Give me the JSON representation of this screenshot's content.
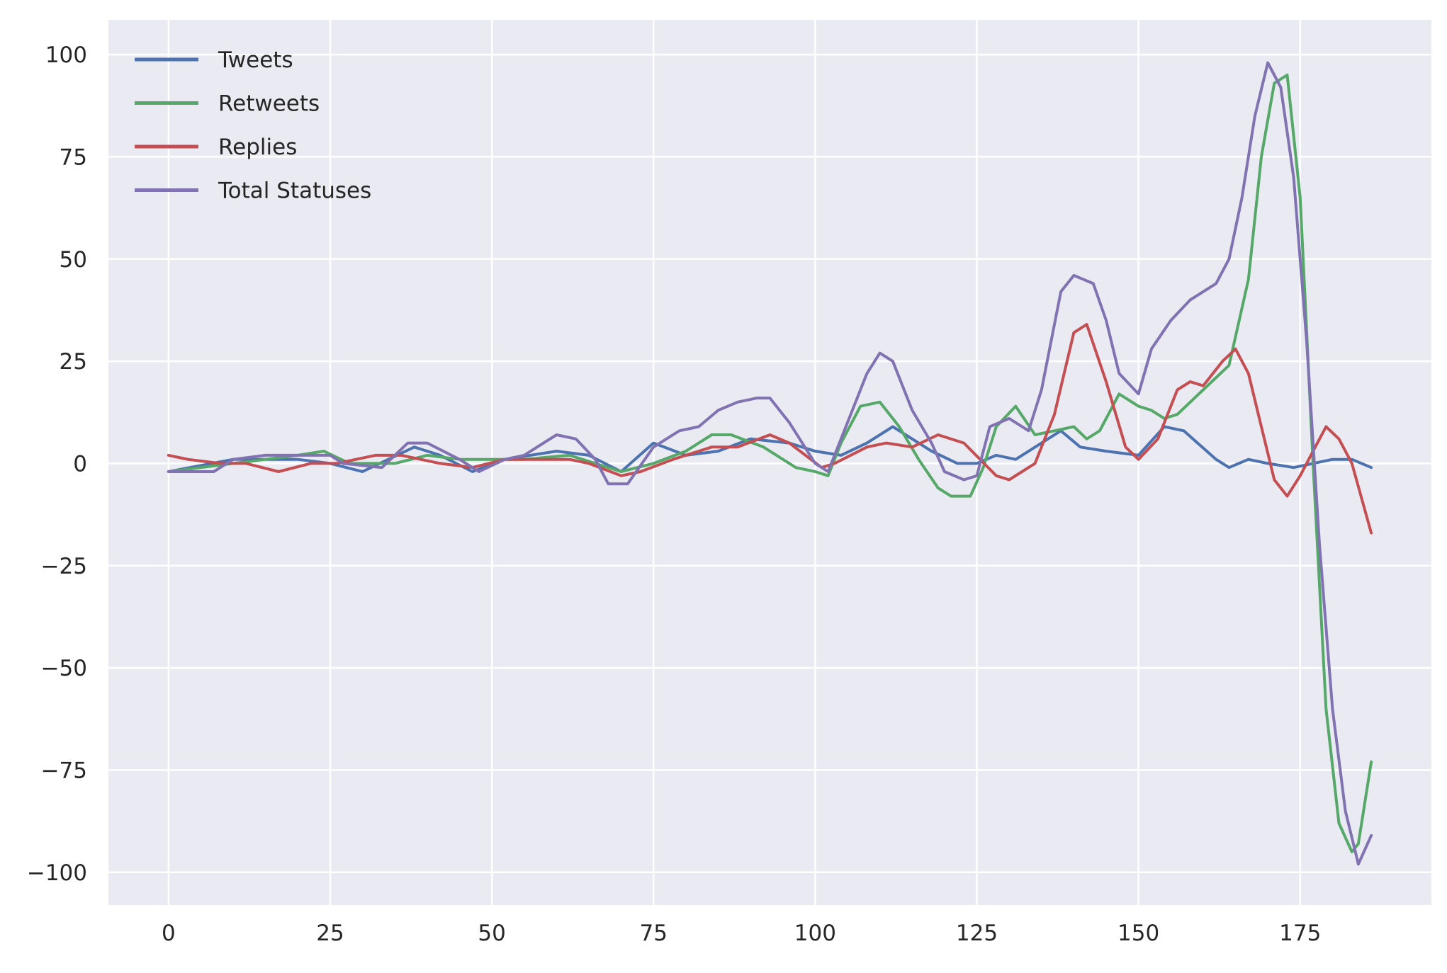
{
  "chart_data": {
    "type": "line",
    "title": "",
    "xlabel": "",
    "ylabel": "",
    "xlim": [
      -9.3,
      195.3
    ],
    "ylim": [
      -108,
      108.5
    ],
    "xticks": [
      0,
      25,
      50,
      75,
      100,
      125,
      150,
      175
    ],
    "yticks": [
      100,
      75,
      50,
      25,
      0,
      -25,
      -50,
      -75,
      -100
    ],
    "ytick_labels": [
      "100",
      "75",
      "50",
      "25",
      "0",
      "−25",
      "−50",
      "−75",
      "−100"
    ],
    "grid": true,
    "legend": {
      "position": "top-left"
    },
    "series": [
      {
        "name": "Tweets",
        "color": "#4C72B0",
        "points": [
          [
            0,
            -2
          ],
          [
            10,
            1
          ],
          [
            20,
            1
          ],
          [
            25,
            0
          ],
          [
            30,
            -2
          ],
          [
            38,
            4
          ],
          [
            42,
            2
          ],
          [
            47,
            -2
          ],
          [
            52,
            1
          ],
          [
            60,
            3
          ],
          [
            65,
            2
          ],
          [
            70,
            -2
          ],
          [
            75,
            5
          ],
          [
            80,
            2
          ],
          [
            85,
            3
          ],
          [
            90,
            6
          ],
          [
            96,
            5
          ],
          [
            100,
            3
          ],
          [
            104,
            2
          ],
          [
            108,
            5
          ],
          [
            112,
            9
          ],
          [
            118,
            3
          ],
          [
            122,
            0
          ],
          [
            125,
            0
          ],
          [
            128,
            2
          ],
          [
            131,
            1
          ],
          [
            135,
            5
          ],
          [
            138,
            8
          ],
          [
            141,
            4
          ],
          [
            145,
            3
          ],
          [
            150,
            2
          ],
          [
            154,
            9
          ],
          [
            157,
            8
          ],
          [
            162,
            1
          ],
          [
            164,
            -1
          ],
          [
            167,
            1
          ],
          [
            170,
            0
          ],
          [
            174,
            -1
          ],
          [
            180,
            1
          ],
          [
            183,
            1
          ],
          [
            186,
            -1
          ]
        ]
      },
      {
        "name": "Retweets",
        "color": "#55A868",
        "points": [
          [
            0,
            -2
          ],
          [
            10,
            0
          ],
          [
            20,
            2
          ],
          [
            24,
            3
          ],
          [
            28,
            0
          ],
          [
            35,
            0
          ],
          [
            40,
            2
          ],
          [
            45,
            1
          ],
          [
            50,
            1
          ],
          [
            55,
            1
          ],
          [
            62,
            2
          ],
          [
            66,
            0
          ],
          [
            70,
            -2
          ],
          [
            75,
            0
          ],
          [
            80,
            3
          ],
          [
            84,
            7
          ],
          [
            87,
            7
          ],
          [
            92,
            4
          ],
          [
            97,
            -1
          ],
          [
            100,
            -2
          ],
          [
            102,
            -3
          ],
          [
            104,
            5
          ],
          [
            107,
            14
          ],
          [
            110,
            15
          ],
          [
            113,
            9
          ],
          [
            116,
            1
          ],
          [
            119,
            -6
          ],
          [
            121,
            -8
          ],
          [
            124,
            -8
          ],
          [
            126,
            -1
          ],
          [
            128,
            9
          ],
          [
            131,
            14
          ],
          [
            134,
            7
          ],
          [
            137,
            8
          ],
          [
            140,
            9
          ],
          [
            142,
            6
          ],
          [
            144,
            8
          ],
          [
            147,
            17
          ],
          [
            150,
            14
          ],
          [
            152,
            13
          ],
          [
            154,
            11
          ],
          [
            156,
            12
          ],
          [
            160,
            18
          ],
          [
            164,
            24
          ],
          [
            167,
            45
          ],
          [
            169,
            75
          ],
          [
            171,
            93
          ],
          [
            173,
            95
          ],
          [
            175,
            65
          ],
          [
            177,
            0
          ],
          [
            179,
            -60
          ],
          [
            181,
            -88
          ],
          [
            183,
            -95
          ],
          [
            184,
            -93
          ],
          [
            186,
            -73
          ]
        ]
      },
      {
        "name": "Replies",
        "color": "#C44E52",
        "points": [
          [
            0,
            2
          ],
          [
            3,
            1
          ],
          [
            8,
            0
          ],
          [
            12,
            0
          ],
          [
            17,
            -2
          ],
          [
            22,
            0
          ],
          [
            26,
            0
          ],
          [
            32,
            2
          ],
          [
            36,
            2
          ],
          [
            42,
            0
          ],
          [
            47,
            -1
          ],
          [
            52,
            1
          ],
          [
            57,
            1
          ],
          [
            62,
            1
          ],
          [
            65,
            0
          ],
          [
            70,
            -3
          ],
          [
            73,
            -2
          ],
          [
            78,
            1
          ],
          [
            84,
            4
          ],
          [
            88,
            4
          ],
          [
            93,
            7
          ],
          [
            96,
            5
          ],
          [
            101,
            -1
          ],
          [
            103,
            0
          ],
          [
            108,
            4
          ],
          [
            111,
            5
          ],
          [
            115,
            4
          ],
          [
            119,
            7
          ],
          [
            123,
            5
          ],
          [
            128,
            -3
          ],
          [
            130,
            -4
          ],
          [
            134,
            0
          ],
          [
            137,
            12
          ],
          [
            140,
            32
          ],
          [
            142,
            34
          ],
          [
            145,
            20
          ],
          [
            148,
            4
          ],
          [
            150,
            1
          ],
          [
            153,
            6
          ],
          [
            156,
            18
          ],
          [
            158,
            20
          ],
          [
            160,
            19
          ],
          [
            163,
            25
          ],
          [
            165,
            28
          ],
          [
            167,
            22
          ],
          [
            169,
            9
          ],
          [
            171,
            -4
          ],
          [
            173,
            -8
          ],
          [
            175,
            -3
          ],
          [
            177,
            3
          ],
          [
            179,
            9
          ],
          [
            181,
            6
          ],
          [
            183,
            0
          ],
          [
            186,
            -17
          ]
        ]
      },
      {
        "name": "Total Statuses",
        "color": "#8172B2",
        "points": [
          [
            0,
            -2
          ],
          [
            7,
            -2
          ],
          [
            10,
            1
          ],
          [
            15,
            2
          ],
          [
            20,
            2
          ],
          [
            25,
            2
          ],
          [
            27,
            0
          ],
          [
            33,
            -1
          ],
          [
            37,
            5
          ],
          [
            40,
            5
          ],
          [
            45,
            1
          ],
          [
            48,
            -2
          ],
          [
            52,
            1
          ],
          [
            55,
            2
          ],
          [
            60,
            7
          ],
          [
            63,
            6
          ],
          [
            66,
            1
          ],
          [
            68,
            -5
          ],
          [
            71,
            -5
          ],
          [
            75,
            4
          ],
          [
            79,
            8
          ],
          [
            82,
            9
          ],
          [
            85,
            13
          ],
          [
            88,
            15
          ],
          [
            91,
            16
          ],
          [
            93,
            16
          ],
          [
            96,
            10
          ],
          [
            100,
            0
          ],
          [
            102,
            -2
          ],
          [
            105,
            10
          ],
          [
            108,
            22
          ],
          [
            110,
            27
          ],
          [
            112,
            25
          ],
          [
            115,
            13
          ],
          [
            118,
            5
          ],
          [
            120,
            -2
          ],
          [
            123,
            -4
          ],
          [
            125,
            -3
          ],
          [
            127,
            9
          ],
          [
            130,
            11
          ],
          [
            133,
            8
          ],
          [
            135,
            18
          ],
          [
            138,
            42
          ],
          [
            140,
            46
          ],
          [
            143,
            44
          ],
          [
            145,
            35
          ],
          [
            147,
            22
          ],
          [
            150,
            17
          ],
          [
            152,
            28
          ],
          [
            155,
            35
          ],
          [
            158,
            40
          ],
          [
            160,
            42
          ],
          [
            162,
            44
          ],
          [
            164,
            50
          ],
          [
            166,
            65
          ],
          [
            168,
            85
          ],
          [
            170,
            98
          ],
          [
            172,
            92
          ],
          [
            174,
            70
          ],
          [
            176,
            30
          ],
          [
            178,
            -20
          ],
          [
            180,
            -60
          ],
          [
            182,
            -85
          ],
          [
            184,
            -98
          ],
          [
            186,
            -91
          ]
        ]
      }
    ]
  }
}
